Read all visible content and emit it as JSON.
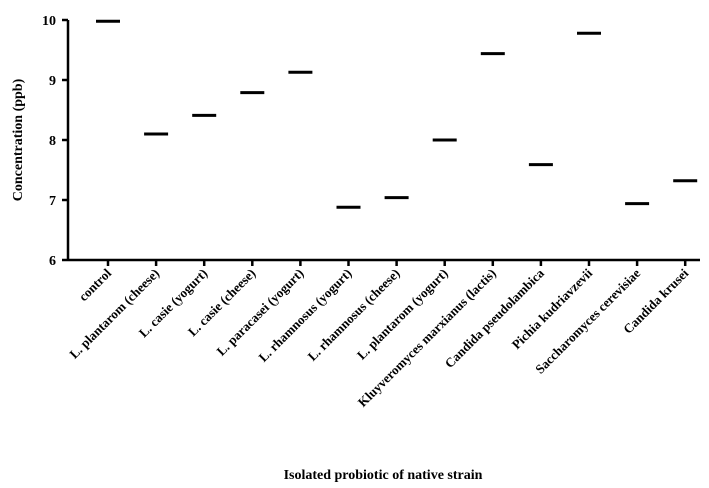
{
  "chart_data": {
    "type": "scatter",
    "marker": "horizontal-line",
    "title": "",
    "xlabel": "Isolated probiotic of native strain",
    "ylabel": "Concentration (ppb)",
    "ylim": [
      6,
      10
    ],
    "yticks": [
      6,
      7,
      8,
      9,
      10
    ],
    "grid": false,
    "categories": [
      "control",
      "L. plantarom (cheese)",
      "L. casie (yogurt)",
      "L. casie (cheese)",
      "L. paracasei (yogurt)",
      "L. rhamnosus (yogurt)",
      "L. rhamnosus (cheese)",
      "L. plantarom (yogurt)",
      "Kluyveromyces marxianus (lactis)",
      "Candida pseudolambica",
      "Pichia kudriavzevii",
      "Saccharomyces cerevisiae",
      "Candida krusei"
    ],
    "values": [
      9.98,
      8.1,
      8.41,
      8.79,
      9.13,
      6.88,
      7.04,
      8.0,
      9.44,
      7.59,
      9.78,
      6.94,
      7.32
    ]
  }
}
